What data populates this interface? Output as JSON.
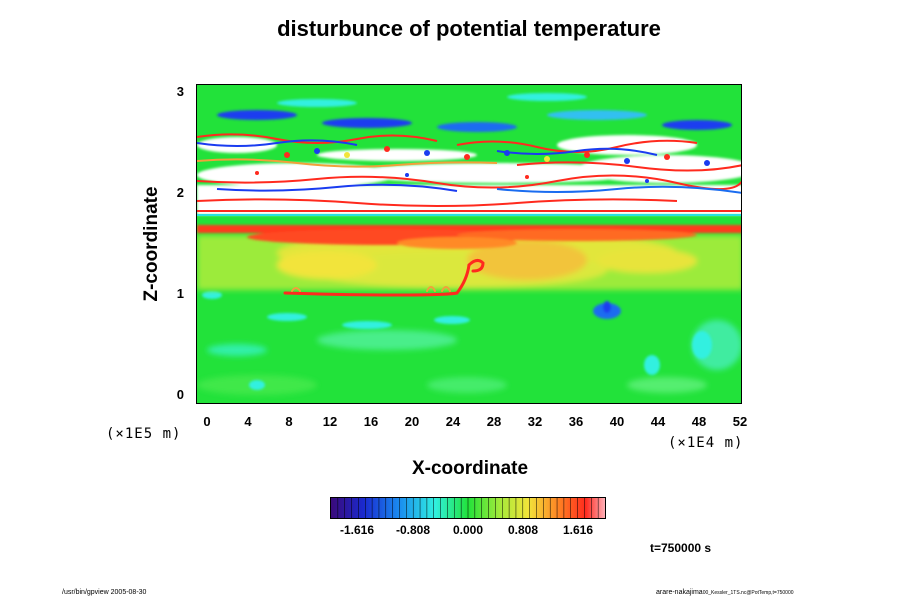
{
  "chart_data": {
    "type": "heatmap",
    "title": "disturbunce of potential temperature",
    "xlabel": "X-coordinate",
    "ylabel": "Z-coordinate",
    "x_scale_note": "(×1E4 m)",
    "z_scale_note": "(×1E5 m)",
    "x_ticks": [
      "0",
      "4",
      "8",
      "12",
      "16",
      "20",
      "24",
      "28",
      "32",
      "36",
      "40",
      "44",
      "48",
      "52"
    ],
    "y_ticks": [
      "0",
      "1",
      "2",
      "3"
    ],
    "xlim": [
      0,
      52
    ],
    "ylim": [
      0,
      3
    ],
    "colorbar": {
      "ticks": [
        "-1.616",
        "-0.808",
        "0.000",
        "0.808",
        "1.616"
      ],
      "range": [
        -2.2,
        2.2
      ]
    },
    "features": [
      {
        "z_range": [
          0,
          0.9
        ],
        "level": "near 0 (green), small negative patches (cyan)"
      },
      {
        "z_range": [
          0.9,
          1.75
        ],
        "level": "positive 0.4–1.0 (yellow-green/yellow)"
      },
      {
        "z_range": [
          1.6,
          1.75
        ],
        "level": "positive 1.2–1.8 (red band)"
      },
      {
        "z_range": [
          1.8,
          2.7
        ],
        "level": "outside colorbar range (white) with wavy structure"
      },
      {
        "z_range": [
          2.7,
          3.05
        ],
        "level": "near 0 (green) with weak disturbances"
      }
    ],
    "colors": {
      "green": "#22e23a",
      "yellow": "#f2e43a",
      "red": "#ff2a1e",
      "cyan": "#30f0e0",
      "blue": "#1a3cf0",
      "white": "#ffffff"
    }
  },
  "annotation": {
    "time": "t=750000 s"
  },
  "footer": {
    "left": "/usr/bin/gpview 2005-08-30",
    "right_main": "arare-nakajima",
    "right_small": "00_Kessler_1TS.nc@PotTemp,t=750000"
  }
}
